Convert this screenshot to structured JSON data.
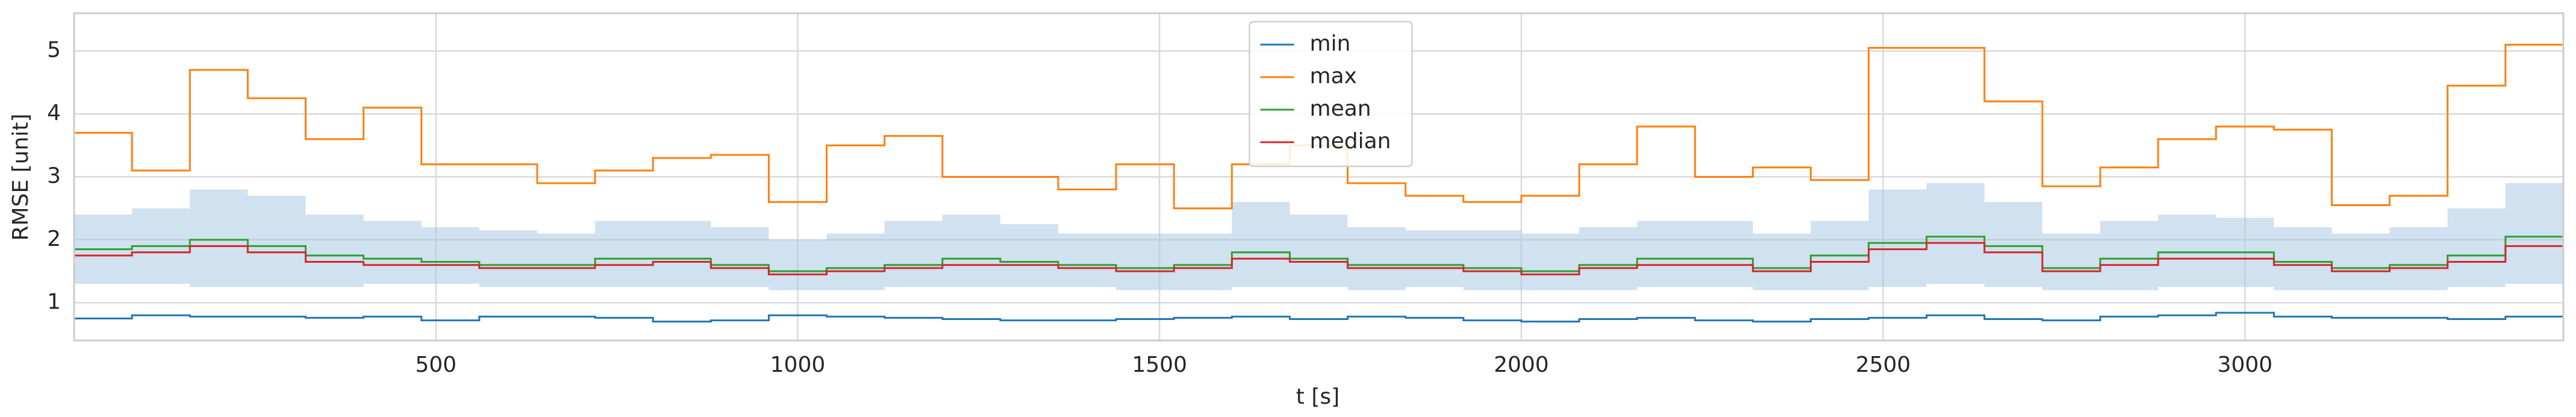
{
  "chart_data": {
    "type": "line",
    "drawstyle": "steps-post",
    "xlabel": "t [s]",
    "ylabel": "RMSE [unit]",
    "xlim": [
      0,
      3440
    ],
    "ylim": [
      0.4,
      5.6
    ],
    "xticks": [
      500,
      1000,
      1500,
      2000,
      2500,
      3000
    ],
    "yticks": [
      1,
      2,
      3,
      4,
      5
    ],
    "grid": true,
    "legend": "upper center",
    "x": [
      0,
      80,
      160,
      240,
      320,
      400,
      480,
      560,
      640,
      720,
      800,
      880,
      960,
      1040,
      1120,
      1200,
      1280,
      1360,
      1440,
      1520,
      1600,
      1680,
      1760,
      1840,
      1920,
      2000,
      2080,
      2160,
      2240,
      2320,
      2400,
      2480,
      2560,
      2640,
      2720,
      2800,
      2880,
      2960,
      3040,
      3120,
      3200,
      3280,
      3360,
      3440
    ],
    "band": {
      "color": "#a9c8e3",
      "lower": [
        1.3,
        1.3,
        1.25,
        1.25,
        1.25,
        1.3,
        1.3,
        1.25,
        1.25,
        1.25,
        1.25,
        1.25,
        1.2,
        1.2,
        1.25,
        1.25,
        1.25,
        1.25,
        1.2,
        1.2,
        1.25,
        1.25,
        1.2,
        1.25,
        1.2,
        1.2,
        1.2,
        1.25,
        1.25,
        1.2,
        1.2,
        1.25,
        1.3,
        1.25,
        1.2,
        1.2,
        1.25,
        1.25,
        1.2,
        1.2,
        1.2,
        1.25,
        1.3,
        1.25
      ],
      "upper": [
        2.4,
        2.5,
        2.8,
        2.7,
        2.4,
        2.3,
        2.2,
        2.15,
        2.1,
        2.3,
        2.3,
        2.2,
        2.0,
        2.1,
        2.3,
        2.4,
        2.25,
        2.1,
        2.1,
        2.1,
        2.6,
        2.4,
        2.2,
        2.15,
        2.15,
        2.1,
        2.2,
        2.3,
        2.3,
        2.1,
        2.3,
        2.8,
        2.9,
        2.6,
        2.1,
        2.3,
        2.4,
        2.35,
        2.2,
        2.1,
        2.2,
        2.5,
        2.9,
        2.6
      ]
    },
    "series": [
      {
        "name": "min",
        "color": "#1f77b4",
        "values": [
          0.75,
          0.8,
          0.78,
          0.78,
          0.76,
          0.78,
          0.72,
          0.78,
          0.78,
          0.76,
          0.7,
          0.72,
          0.8,
          0.78,
          0.76,
          0.74,
          0.72,
          0.72,
          0.74,
          0.76,
          0.78,
          0.74,
          0.78,
          0.76,
          0.72,
          0.7,
          0.74,
          0.76,
          0.72,
          0.7,
          0.74,
          0.76,
          0.8,
          0.74,
          0.72,
          0.78,
          0.8,
          0.84,
          0.78,
          0.76,
          0.76,
          0.74,
          0.78,
          0.74
        ]
      },
      {
        "name": "max",
        "color": "#ff7f0e",
        "values": [
          3.7,
          3.1,
          4.7,
          4.25,
          3.6,
          4.1,
          3.2,
          3.2,
          2.9,
          3.1,
          3.3,
          3.35,
          2.6,
          3.5,
          3.65,
          3.0,
          3.0,
          2.8,
          3.2,
          2.5,
          3.2,
          3.5,
          2.9,
          2.7,
          2.6,
          2.7,
          3.2,
          3.8,
          3.0,
          3.15,
          2.95,
          5.05,
          5.05,
          4.2,
          2.85,
          3.15,
          3.6,
          3.8,
          3.75,
          2.55,
          2.7,
          4.45,
          5.1,
          4.2
        ]
      },
      {
        "name": "mean",
        "color": "#2ca02c",
        "values": [
          1.85,
          1.9,
          2.0,
          1.9,
          1.75,
          1.7,
          1.65,
          1.6,
          1.6,
          1.7,
          1.7,
          1.6,
          1.5,
          1.55,
          1.6,
          1.7,
          1.65,
          1.6,
          1.55,
          1.6,
          1.8,
          1.7,
          1.6,
          1.6,
          1.55,
          1.5,
          1.6,
          1.7,
          1.7,
          1.55,
          1.75,
          1.95,
          2.05,
          1.9,
          1.55,
          1.7,
          1.8,
          1.8,
          1.65,
          1.55,
          1.6,
          1.75,
          2.05,
          1.8
        ]
      },
      {
        "name": "median",
        "color": "#d62728",
        "values": [
          1.75,
          1.8,
          1.9,
          1.8,
          1.65,
          1.6,
          1.6,
          1.55,
          1.55,
          1.6,
          1.65,
          1.55,
          1.45,
          1.5,
          1.55,
          1.6,
          1.6,
          1.55,
          1.5,
          1.55,
          1.7,
          1.65,
          1.55,
          1.55,
          1.5,
          1.45,
          1.55,
          1.6,
          1.6,
          1.5,
          1.65,
          1.85,
          1.95,
          1.8,
          1.5,
          1.6,
          1.7,
          1.7,
          1.6,
          1.5,
          1.55,
          1.65,
          1.9,
          1.7
        ]
      }
    ]
  }
}
